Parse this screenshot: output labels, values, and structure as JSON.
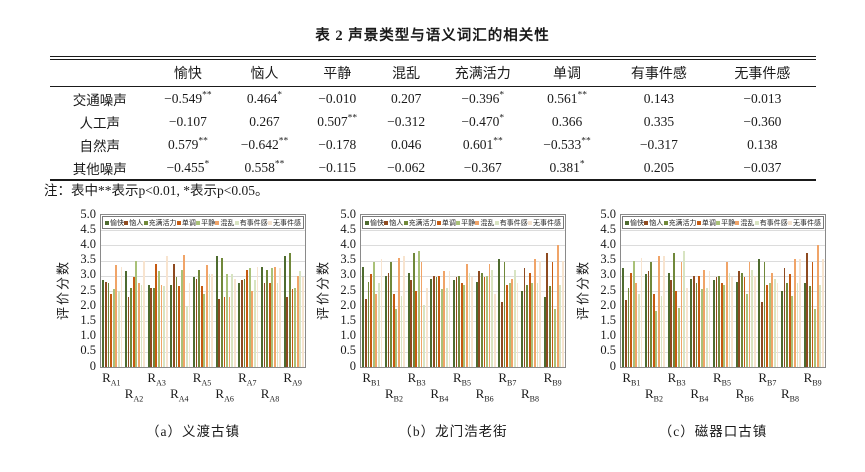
{
  "table": {
    "title": "表 2 声景类型与语义词汇的相关性",
    "columns": [
      "愉快",
      "恼人",
      "平静",
      "混乱",
      "充满活力",
      "单调",
      "有事件感",
      "无事件感"
    ],
    "rows": [
      {
        "label": "交通噪声",
        "values": [
          "−0.549**",
          "0.464*",
          "−0.010",
          "0.207",
          "−0.396*",
          "0.561**",
          "0.143",
          "−0.013"
        ]
      },
      {
        "label": "人工声",
        "values": [
          "−0.107",
          "0.267",
          "0.507**",
          "−0.312",
          "−0.470*",
          "0.366",
          "0.335",
          "−0.360"
        ]
      },
      {
        "label": "自然声",
        "values": [
          "0.579**",
          "−0.642**",
          "−0.178",
          "0.046",
          "0.601**",
          "−0.533**",
          "−0.317",
          "0.138"
        ]
      },
      {
        "label": "其他噪声",
        "values": [
          "−0.455*",
          "0.558**",
          "−0.115",
          "−0.062",
          "−0.367",
          "0.381*",
          "0.205",
          "−0.037"
        ]
      }
    ],
    "note": "注：表中**表示p<0.01, *表示p<0.05。"
  },
  "chart_data": [
    {
      "type": "bar",
      "caption": "（a）义渡古镇",
      "ylabel": "评价分数",
      "ylim": [
        0,
        5
      ],
      "ytick_step": 0.5,
      "grid": true,
      "legend_position": "top-inside",
      "categories": [
        "R_A1",
        "R_A2",
        "R_A3",
        "R_A4",
        "R_A5",
        "R_A6",
        "R_A7",
        "R_A8",
        "R_A9"
      ],
      "series": [
        {
          "name": "愉快",
          "color": "#4e6b2f",
          "values": [
            2.85,
            3.15,
            2.7,
            2.7,
            2.95,
            3.65,
            2.75,
            3.3,
            3.65
          ]
        },
        {
          "name": "恼人",
          "color": "#8e4a20",
          "values": [
            2.8,
            2.3,
            2.6,
            3.4,
            2.9,
            2.25,
            2.85,
            2.75,
            2.3
          ]
        },
        {
          "name": "充满活力",
          "color": "#70883a",
          "values": [
            2.75,
            2.6,
            2.6,
            2.95,
            3.2,
            3.6,
            2.9,
            3.2,
            3.75
          ]
        },
        {
          "name": "单调",
          "color": "#c55a11",
          "values": [
            2.4,
            2.95,
            3.4,
            2.65,
            2.65,
            2.3,
            3.2,
            2.75,
            2.55
          ]
        },
        {
          "name": "平静",
          "color": "#a9c178",
          "values": [
            2.55,
            3.5,
            3.15,
            3.2,
            2.4,
            3.05,
            3.25,
            3.25,
            2.6
          ]
        },
        {
          "name": "混乱",
          "color": "#f0a468",
          "values": [
            3.35,
            2.75,
            2.7,
            3.7,
            3.35,
            2.3,
            2.5,
            3.3,
            3.0
          ]
        },
        {
          "name": "有事件感",
          "color": "#d8e4c2",
          "values": [
            2.5,
            2.7,
            2.65,
            2.0,
            3.05,
            3.05,
            2.85,
            2.75,
            3.15
          ]
        },
        {
          "name": "无事件感",
          "color": "#f8e4cf",
          "values": [
            3.3,
            3.5,
            3.65,
            2.75,
            3.05,
            2.9,
            3.3,
            3.25,
            2.95
          ]
        }
      ]
    },
    {
      "type": "bar",
      "caption": "（b）龙门浩老街",
      "ylabel": "评价分数",
      "ylim": [
        0,
        5
      ],
      "ytick_step": 0.5,
      "grid": true,
      "legend_position": "top-inside",
      "categories": [
        "R_B1",
        "R_B2",
        "R_B3",
        "R_B4",
        "R_B5",
        "R_B6",
        "R_B7",
        "R_B8",
        "R_B9"
      ],
      "series": [
        {
          "name": "愉快",
          "color": "#4e6b2f",
          "values": [
            3.3,
            3.0,
            3.1,
            2.9,
            2.85,
            2.8,
            3.55,
            2.5,
            2.3
          ]
        },
        {
          "name": "恼人",
          "color": "#8e4a20",
          "values": [
            2.25,
            3.1,
            2.85,
            3.0,
            2.95,
            3.15,
            2.15,
            3.25,
            3.75
          ]
        },
        {
          "name": "充满活力",
          "color": "#70883a",
          "values": [
            2.8,
            3.45,
            3.75,
            2.95,
            3.0,
            3.1,
            3.45,
            2.7,
            2.65
          ]
        },
        {
          "name": "单调",
          "color": "#c55a11",
          "values": [
            3.05,
            2.4,
            2.5,
            3.0,
            2.75,
            2.95,
            2.7,
            3.1,
            3.45
          ]
        },
        {
          "name": "平静",
          "color": "#a9c178",
          "values": [
            3.45,
            1.9,
            3.8,
            2.55,
            2.7,
            3.0,
            2.75,
            2.75,
            1.9
          ]
        },
        {
          "name": "混乱",
          "color": "#f0a468",
          "values": [
            2.4,
            3.6,
            3.45,
            3.15,
            3.4,
            3.4,
            2.9,
            3.55,
            4.0
          ]
        },
        {
          "name": "有事件感",
          "color": "#d8e4c2",
          "values": [
            2.75,
            2.35,
            2.05,
            2.6,
            3.1,
            3.2,
            3.2,
            2.75,
            2.7
          ]
        },
        {
          "name": "无事件感",
          "color": "#f8e4cf",
          "values": [
            3.55,
            3.65,
            2.6,
            3.15,
            2.95,
            2.4,
            2.75,
            3.5,
            3.5
          ]
        }
      ]
    },
    {
      "type": "bar",
      "caption": "（c）磁器口古镇",
      "ylabel": "评价分数",
      "ylim": [
        0,
        5
      ],
      "ytick_step": 0.5,
      "grid": true,
      "legend_position": "top-inside",
      "categories": [
        "R_B1",
        "R_B2",
        "R_B3",
        "R_B4",
        "R_B5",
        "R_B6",
        "R_B7",
        "R_B8",
        "R_B9"
      ],
      "series": [
        {
          "name": "愉快",
          "color": "#4e6b2f",
          "values": [
            3.25,
            3.05,
            3.1,
            2.9,
            2.85,
            2.8,
            3.55,
            2.5,
            2.75
          ]
        },
        {
          "name": "恼人",
          "color": "#8e4a20",
          "values": [
            2.2,
            3.15,
            2.85,
            3.0,
            2.95,
            3.15,
            2.15,
            3.25,
            3.75
          ]
        },
        {
          "name": "充满活力",
          "color": "#70883a",
          "values": [
            2.6,
            3.45,
            3.75,
            2.75,
            3.0,
            3.1,
            3.45,
            2.75,
            2.65
          ]
        },
        {
          "name": "单调",
          "color": "#c55a11",
          "values": [
            3.1,
            2.4,
            2.5,
            3.0,
            2.75,
            2.95,
            2.7,
            3.05,
            3.45
          ]
        },
        {
          "name": "平静",
          "color": "#a9c178",
          "values": [
            3.5,
            1.85,
            1.95,
            2.55,
            2.7,
            2.4,
            2.75,
            2.35,
            1.9
          ]
        },
        {
          "name": "混乱",
          "color": "#f0a468",
          "values": [
            2.75,
            3.65,
            3.45,
            3.2,
            3.45,
            3.45,
            3.1,
            3.55,
            4.0
          ]
        },
        {
          "name": "有事件感",
          "color": "#d8e4c2",
          "values": [
            2.4,
            2.35,
            3.8,
            2.6,
            3.1,
            3.2,
            2.9,
            2.75,
            2.7
          ]
        },
        {
          "name": "无事件感",
          "color": "#f8e4cf",
          "values": [
            3.6,
            3.65,
            2.6,
            3.15,
            2.95,
            3.0,
            2.75,
            3.55,
            3.55
          ]
        }
      ]
    }
  ]
}
